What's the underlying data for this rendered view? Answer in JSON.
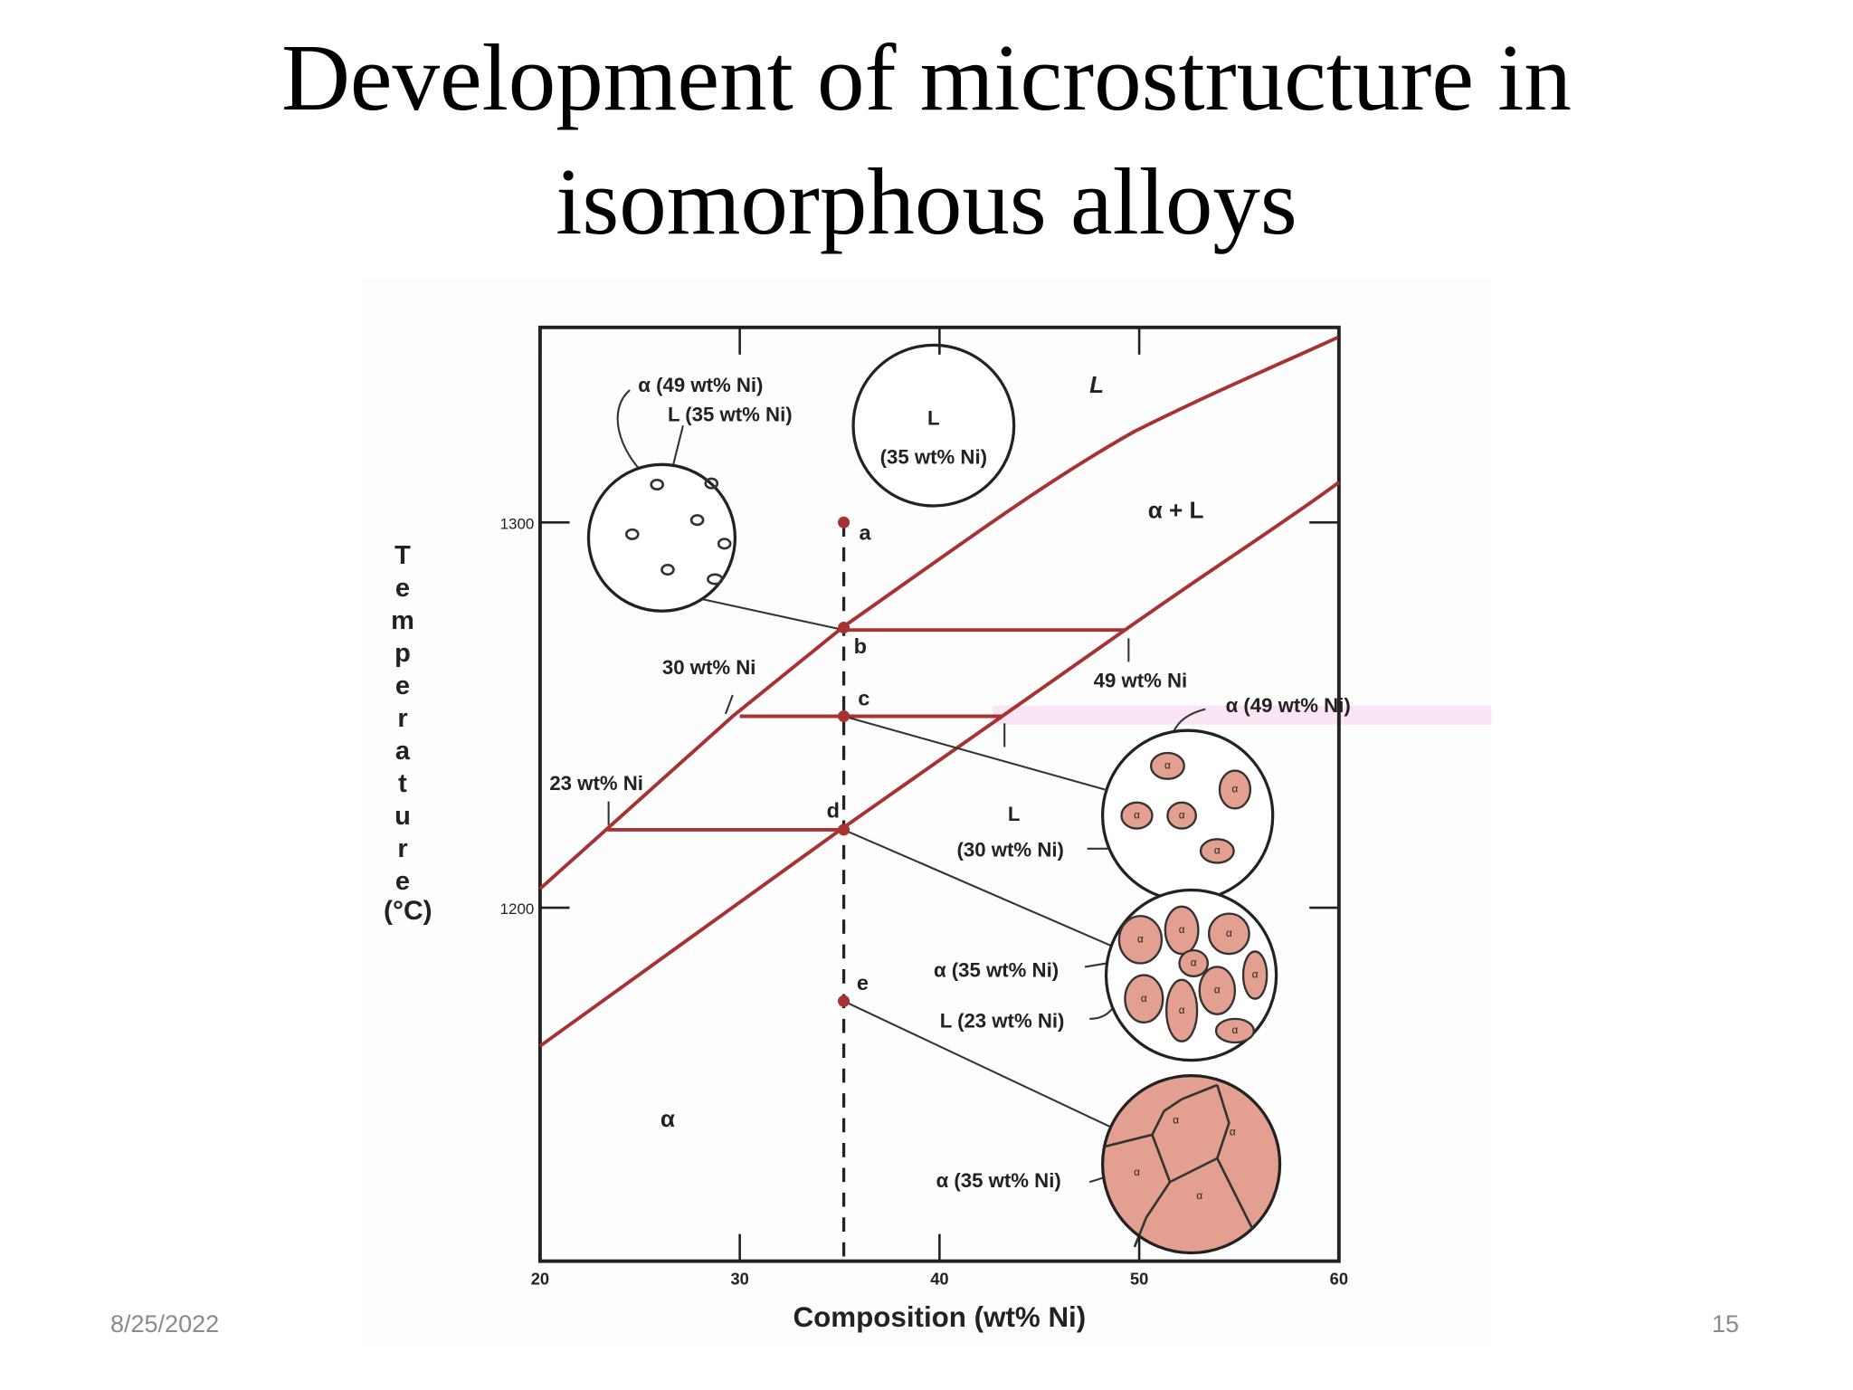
{
  "slide": {
    "title": "Development of microstructure in isomorphous alloys",
    "date": "8/25/2022",
    "page": "15"
  },
  "diagram": {
    "y_axis_label": "Temperature",
    "y_axis_unit": "(°C)",
    "x_axis_label": "Composition (wt% Ni)",
    "y_ticks": [
      "1300",
      "1200"
    ],
    "x_ticks": [
      "20",
      "30",
      "40",
      "50",
      "60"
    ],
    "points": [
      "a",
      "b",
      "c",
      "d",
      "e"
    ],
    "regions": {
      "liquid": "L",
      "two_phase": "α + L",
      "solid": "α"
    },
    "annotations": {
      "b_alpha": "α (49 wt% Ni)",
      "b_liquid": "L (35 wt% Ni)",
      "a_phase": "L",
      "a_composition": "(35 wt% Ni)",
      "b_liquidus": "30 wt% Ni",
      "b_solidus": "49 wt% Ni",
      "c_alpha": "α (49 wt% Ni)",
      "d_solidus": "23 wt% Ni",
      "c_liquid_phase": "L",
      "c_liquid_composition": "(30 wt% Ni)",
      "d_alpha": "α (35 wt% Ni)",
      "d_liquid": "L (23 wt% Ni)",
      "e_alpha": "α (35 wt% Ni)"
    },
    "grain_label": "α"
  }
}
